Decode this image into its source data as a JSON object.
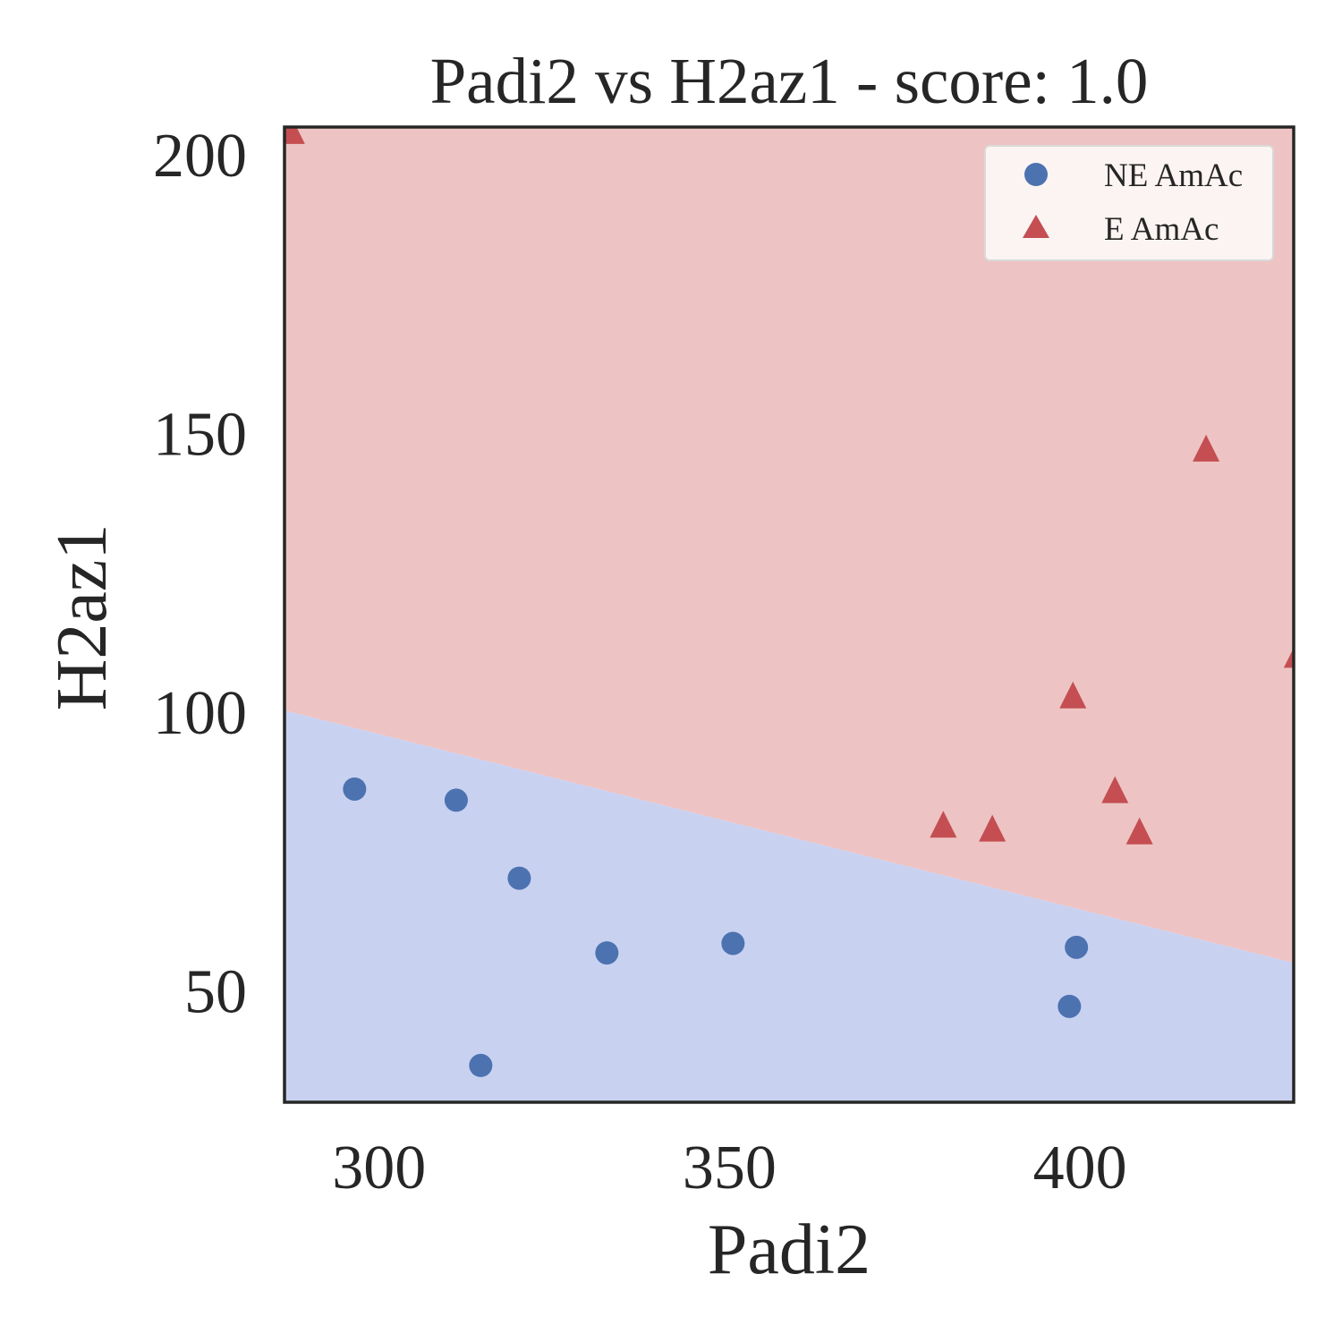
{
  "chart_data": {
    "type": "scatter",
    "title": "Padi2 vs H2az1 - score: 1.0",
    "xlabel": "Padi2",
    "ylabel": "H2az1",
    "xlim": [
      286.5,
      430.5
    ],
    "ylim": [
      30,
      205
    ],
    "xticks": [
      300,
      350,
      400
    ],
    "yticks": [
      50,
      100,
      150,
      200
    ],
    "grid": false,
    "legend_position": "top-right",
    "decision_boundary": {
      "points": [
        [
          286.5,
          100.3
        ],
        [
          430.5,
          55.0
        ]
      ],
      "below_color": "#c9d1f1",
      "above_color": "#edc4c3"
    },
    "series": [
      {
        "name": "NE AmAc",
        "marker": "circle",
        "color": "#4c72b0",
        "points": [
          [
            296.5,
            86.2
          ],
          [
            311.0,
            84.2
          ],
          [
            320.0,
            70.2
          ],
          [
            332.5,
            56.8
          ],
          [
            350.5,
            58.5
          ],
          [
            398.5,
            47.2
          ],
          [
            399.5,
            57.8
          ],
          [
            314.5,
            36.6
          ]
        ]
      },
      {
        "name": "E AmAc",
        "marker": "triangle",
        "color": "#c44e52",
        "points": [
          [
            287.5,
            204.0
          ],
          [
            380.5,
            79.5
          ],
          [
            387.5,
            78.8
          ],
          [
            399.0,
            102.7
          ],
          [
            405.0,
            85.7
          ],
          [
            408.5,
            78.3
          ],
          [
            418.0,
            147.0
          ],
          [
            431.0,
            110.0
          ]
        ]
      }
    ]
  }
}
